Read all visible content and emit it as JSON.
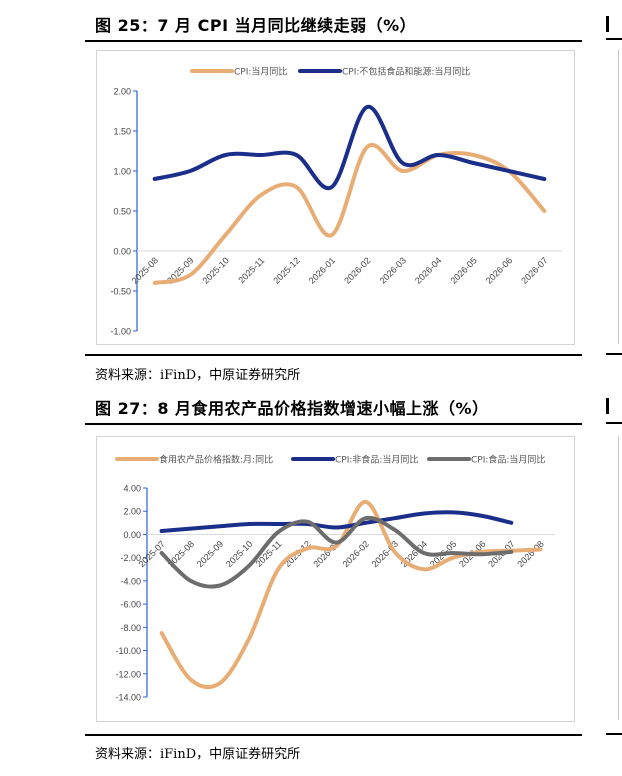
{
  "figure_top": {
    "title": "图 25：7 月 CPI 当月同比继续走弱（%）",
    "source": "资料来源：iFinD，中原证券研究所"
  },
  "figure_bottom": {
    "title": "图 27：8 月食用农产品价格指数增速小幅上涨（%）",
    "source": "资料来源：iFinD，中原证券研究所"
  },
  "chart_data": [
    {
      "type": "line",
      "categories": [
        "2025-08",
        "2025-09",
        "2025-10",
        "2025-11",
        "2025-12",
        "2026-01",
        "2026-02",
        "2026-03",
        "2026-04",
        "2026-05",
        "2026-06",
        "2026-07"
      ],
      "series": [
        {
          "name": "CPI:当月同比",
          "color": "#e8ad75",
          "values": [
            -0.4,
            -0.3,
            0.2,
            0.7,
            0.8,
            0.2,
            1.3,
            1.0,
            1.2,
            1.2,
            1.0,
            0.5
          ]
        },
        {
          "name": "CPI:不包括食品和能源:当月同比",
          "color": "#1b2f8a",
          "values": [
            0.9,
            1.0,
            1.2,
            1.2,
            1.2,
            0.8,
            1.8,
            1.1,
            1.2,
            1.1,
            1.0,
            0.9
          ]
        }
      ],
      "ylim": [
        -1.0,
        2.0
      ],
      "yticks": [
        "2.00",
        "1.50",
        "1.00",
        "0.50",
        "0.00",
        "-0.50",
        "-1.00"
      ],
      "ytick_values": [
        2.0,
        1.5,
        1.0,
        0.5,
        0.0,
        -0.5,
        -1.0
      ],
      "grid": "zero-line",
      "legend": "top"
    },
    {
      "type": "line",
      "categories": [
        "2025-07",
        "2025-08",
        "2025-09",
        "2025-10",
        "2025-11",
        "2025-12",
        "2026-01",
        "2026-02",
        "2026-03",
        "2026-04",
        "2026-05",
        "2026-06",
        "2026-07",
        "2026-08"
      ],
      "series": [
        {
          "name": "食用农产品价格指数:月:同比",
          "color": "#e8ad75",
          "values": [
            -8.5,
            -12.5,
            -12.8,
            -9.0,
            -3.0,
            -1.2,
            -1.0,
            2.8,
            -1.5,
            -3.0,
            -2.0,
            -1.5,
            -1.4,
            -1.3
          ]
        },
        {
          "name": "CPI:非食品:当月同比",
          "color": "#1b2f8a",
          "values": [
            0.3,
            0.5,
            0.7,
            0.9,
            0.9,
            0.9,
            0.6,
            1.0,
            1.4,
            1.8,
            1.9,
            1.6,
            1.0,
            null
          ]
        },
        {
          "name": "CPI:食品:当月同比",
          "color": "#6d6d6d",
          "values": [
            -1.6,
            -4.0,
            -4.4,
            -2.7,
            0.2,
            1.1,
            -0.7,
            1.4,
            0.4,
            -1.6,
            -1.6,
            -1.7,
            -1.5,
            null
          ]
        }
      ],
      "ylim": [
        -14.0,
        4.0
      ],
      "yticks": [
        "4.00",
        "2.00",
        "0.00",
        "-2.00",
        "-4.00",
        "-6.00",
        "-8.00",
        "-10.00",
        "-12.00",
        "-14.00"
      ],
      "ytick_values": [
        4.0,
        2.0,
        0.0,
        -2.0,
        -4.0,
        -6.0,
        -8.0,
        -10.0,
        -12.0,
        -14.0
      ],
      "grid": "zero-line",
      "legend": "top"
    }
  ]
}
